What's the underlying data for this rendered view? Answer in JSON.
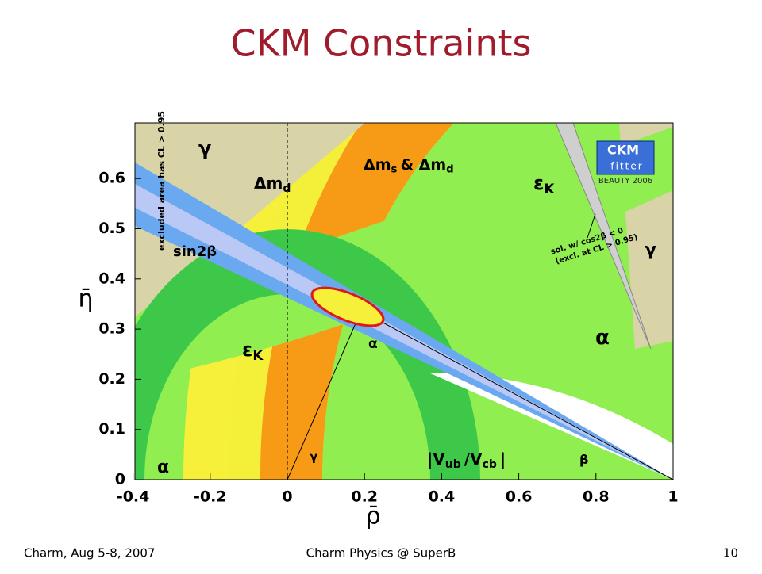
{
  "slide": {
    "title": "CKM Constraints",
    "footer": {
      "left": "Charm, Aug 5-8, 2007",
      "center": "Charm Physics @ SuperB",
      "right": 10
    }
  },
  "chart_data": {
    "type": "contour",
    "x_label": "ρ̄",
    "y_label": "η̄",
    "xlim": [
      -0.4,
      1
    ],
    "ylim": [
      0,
      0.7
    ],
    "xticks": [
      -0.4,
      -0.2,
      0,
      0.2,
      0.4,
      0.6,
      0.8,
      1
    ],
    "yticks": [
      0,
      0.1,
      0.2,
      0.3,
      0.4,
      0.5,
      0.6
    ],
    "annotations": [
      {
        "text": "γ"
      },
      {
        "text": "Δm",
        "sub": "d"
      },
      {
        "text": "Δm",
        "sub": "s",
        "tail": "& Δm",
        "sub2": "d"
      },
      {
        "text": "ε",
        "sub": "K"
      },
      {
        "text": "sin2β"
      },
      {
        "text": "γ"
      },
      {
        "text": "α"
      },
      {
        "text": "ε",
        "sub": "K"
      },
      {
        "text": "α"
      },
      {
        "text": "α"
      },
      {
        "text": "γ"
      },
      {
        "text": "β"
      },
      {
        "text": "|V",
        "sub": "ub",
        "tail": "/V",
        "sub2": "cb",
        "end": "|"
      },
      {
        "text": "excluded area has CL > 0.95"
      },
      {
        "text": "sol. w/ cos2β < 0"
      },
      {
        "text": "(excl. at CL > 0.95)"
      }
    ],
    "logo": {
      "top": "CKM",
      "bottom": "fitter",
      "caption": "BEAUTY 2006"
    }
  }
}
